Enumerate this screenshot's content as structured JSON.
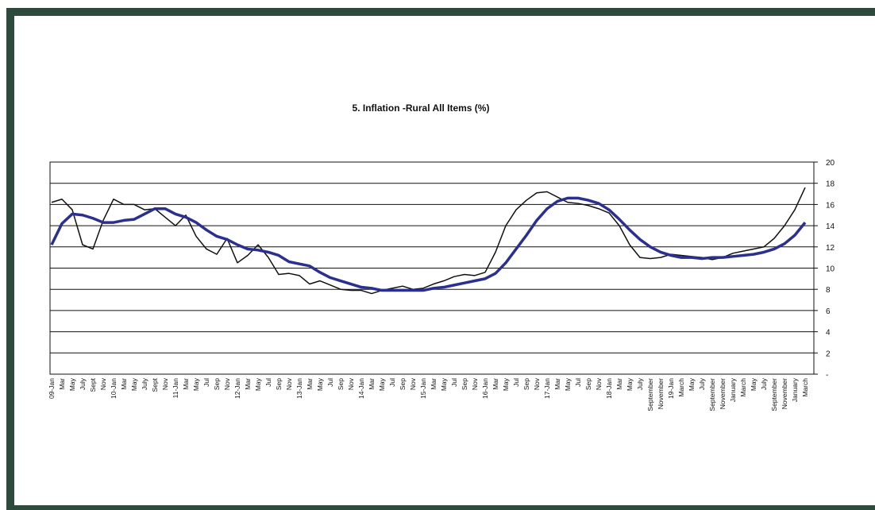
{
  "chart_data": {
    "type": "line",
    "title": "5. Inflation -Rural All Items (%)",
    "categories": [
      "09-Jan",
      "Mar",
      "May",
      "July",
      "Sept",
      "Nov",
      "10-Jan",
      "Mar",
      "May",
      "July",
      "Sept",
      "Nov",
      "11-Jan",
      "Mar",
      "May",
      "Jul",
      "Sep",
      "Nov",
      "12-Jan",
      "Mar",
      "May",
      "Jul",
      "Sep",
      "Nov",
      "13-Jan",
      "Mar",
      "May",
      "Jul",
      "Sep",
      "Nov",
      "14-Jan",
      "Mar",
      "May",
      "Jul",
      "Sep",
      "Nov",
      "15-Jan",
      "Mar",
      "May",
      "Jul",
      "Sep",
      "Nov",
      "16-Jan",
      "Mar",
      "May",
      "Jul",
      "Sep",
      "Nov",
      "17-Jan",
      "Mar",
      "May",
      "Jul",
      "Sep",
      "Nov",
      "18-Jan",
      "Mar",
      "May",
      "July",
      "September",
      "November",
      "19-Jan",
      "March",
      "May",
      "July",
      "September",
      "November",
      "January",
      "March",
      "May",
      "July",
      "September",
      "November",
      "January",
      "March"
    ],
    "series": [
      {
        "color": "#111111",
        "values": [
          16.2,
          16.5,
          15.5,
          12.2,
          11.8,
          14.5,
          16.5,
          16,
          16,
          15.5,
          15.6,
          14.8,
          14,
          15,
          13,
          11.8,
          11.3,
          12.8,
          10.5,
          11.2,
          12.2,
          11,
          9.4,
          9.5,
          9.3,
          8.5,
          8.8,
          8.4,
          8,
          7.9,
          7.9,
          7.6,
          7.9,
          8.1,
          8.3,
          8,
          8.1,
          8.5,
          8.8,
          9.2,
          9.4,
          9.3,
          9.6,
          11.5,
          14,
          15.5,
          16.4,
          17.1,
          17.2,
          16.7,
          16.2,
          16.1,
          15.9,
          15.6,
          15.2,
          14,
          12.2,
          11,
          10.9,
          11,
          11.3,
          11.2,
          11.1,
          11,
          10.8,
          11,
          11.4,
          11.6,
          11.8,
          12,
          12.8,
          14,
          15.5,
          17.6
        ]
      },
      {
        "color": "#2b2f8f",
        "values": [
          12.2,
          14.2,
          15.1,
          15,
          14.7,
          14.3,
          14.3,
          14.5,
          14.6,
          15.1,
          15.6,
          15.6,
          15.1,
          14.8,
          14.3,
          13.6,
          13,
          12.7,
          12.2,
          11.8,
          11.7,
          11.5,
          11.2,
          10.6,
          10.4,
          10.2,
          9.6,
          9.1,
          8.8,
          8.5,
          8.2,
          8.1,
          7.9,
          7.9,
          7.9,
          7.9,
          7.9,
          8.1,
          8.2,
          8.4,
          8.6,
          8.8,
          9,
          9.5,
          10.5,
          11.8,
          13.1,
          14.5,
          15.6,
          16.3,
          16.6,
          16.6,
          16.4,
          16.1,
          15.5,
          14.6,
          13.6,
          12.7,
          12,
          11.5,
          11.2,
          11,
          11,
          10.9,
          11,
          11,
          11.1,
          11.2,
          11.3,
          11.5,
          11.8,
          12.3,
          13.1,
          14.3
        ]
      }
    ],
    "ylim": [
      0,
      20
    ],
    "yticks": [
      {
        "value": 0,
        "label": "-"
      },
      2,
      4,
      6,
      8,
      10,
      12,
      14,
      16,
      18,
      20
    ],
    "grid": true
  }
}
